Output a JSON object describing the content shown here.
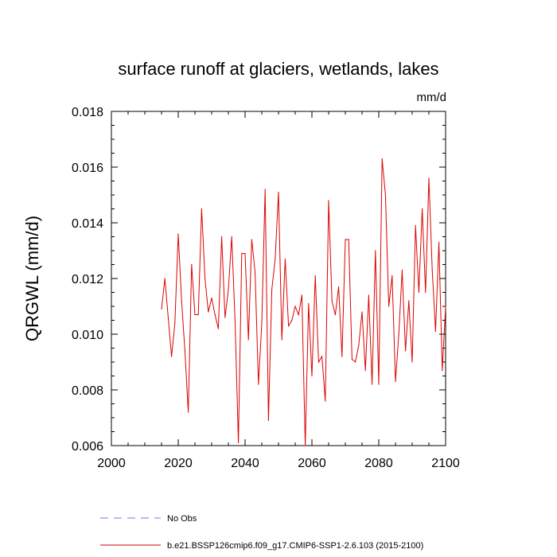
{
  "chart_data": {
    "type": "line",
    "title": "surface runoff at glaciers, wetlands, lakes",
    "units": "mm/d",
    "ylabel": "QRGWL  (mm/d)",
    "xlabel": "",
    "xlim": [
      2000,
      2100
    ],
    "ylim": [
      0.006,
      0.018
    ],
    "x_ticks": [
      2000,
      2020,
      2040,
      2060,
      2080,
      2100
    ],
    "y_ticks": [
      0.006,
      0.008,
      0.01,
      0.012,
      0.014,
      0.016,
      0.018
    ],
    "y_tick_labels": [
      "0.006",
      "0.008",
      "0.010",
      "0.012",
      "0.014",
      "0.016",
      "0.018"
    ],
    "legend": [
      {
        "label": "No Obs",
        "color": "#7777ee",
        "style": "dashed"
      },
      {
        "label": "b.e21.BSSP126cmip6.f09_g17.CMIP6-SSP1-2.6.103 (2015-2100)",
        "color": "#dd0000",
        "style": "solid"
      }
    ],
    "series": [
      {
        "name": "b.e21.BSSP126cmip6.f09_g17.CMIP6-SSP1-2.6.103 (2015-2100)",
        "color": "#dd0000",
        "x_start": 2015,
        "values": [
          0.0109,
          0.012,
          0.0106,
          0.0092,
          0.0104,
          0.0136,
          0.0112,
          0.0094,
          0.0072,
          0.0125,
          0.0107,
          0.0107,
          0.0145,
          0.012,
          0.0108,
          0.0113,
          0.0107,
          0.0102,
          0.0135,
          0.0106,
          0.0116,
          0.0135,
          0.0105,
          0.0061,
          0.0129,
          0.0129,
          0.0098,
          0.0134,
          0.0122,
          0.0082,
          0.0104,
          0.0152,
          0.0069,
          0.0116,
          0.0127,
          0.0151,
          0.0098,
          0.0127,
          0.0103,
          0.0105,
          0.011,
          0.0107,
          0.0114,
          0.006,
          0.0111,
          0.0085,
          0.0121,
          0.009,
          0.0092,
          0.0076,
          0.0148,
          0.0112,
          0.0107,
          0.0117,
          0.0092,
          0.0134,
          0.0134,
          0.0091,
          0.009,
          0.0096,
          0.0108,
          0.0087,
          0.0114,
          0.0082,
          0.013,
          0.0082,
          0.0163,
          0.015,
          0.011,
          0.0121,
          0.0083,
          0.01,
          0.0123,
          0.0094,
          0.0112,
          0.009,
          0.0139,
          0.0115,
          0.0145,
          0.0115,
          0.0156,
          0.0123,
          0.0101,
          0.0133,
          0.0087,
          0.011
        ]
      }
    ]
  }
}
